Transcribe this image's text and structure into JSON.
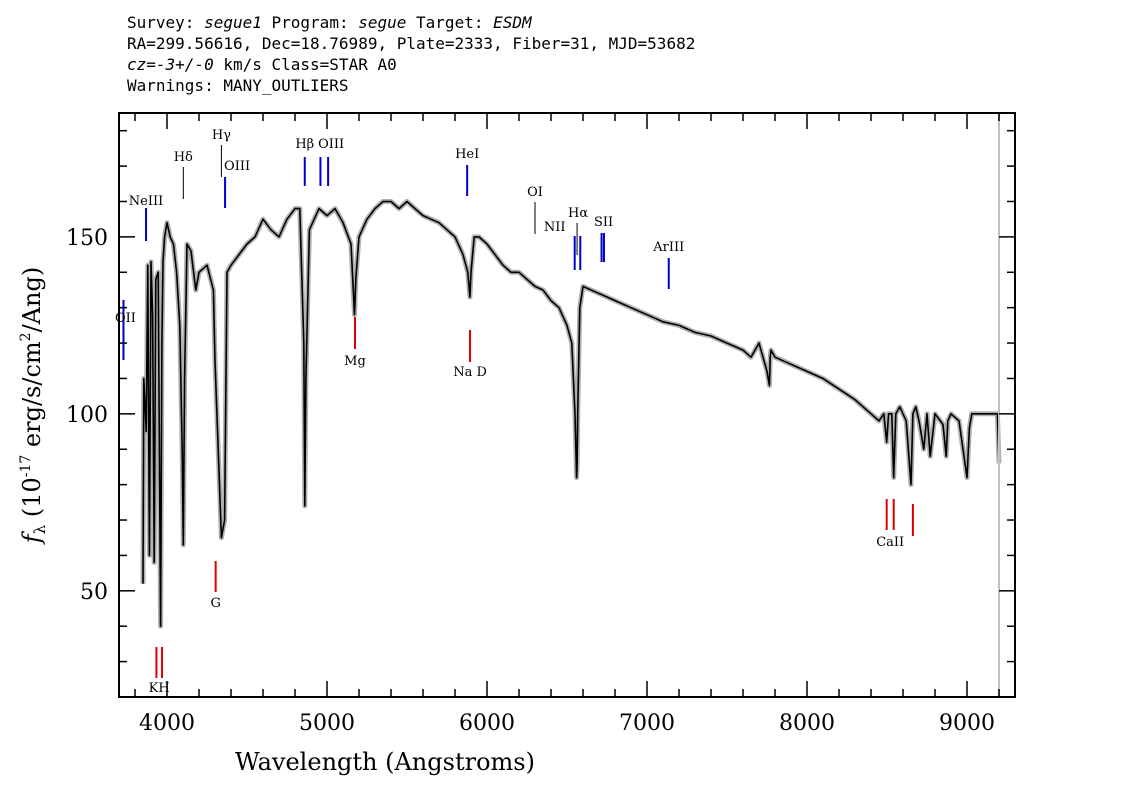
{
  "header": {
    "survey_label": "Survey:",
    "survey": "segue1",
    "program_label": "Program:",
    "program": "segue",
    "target_label": "Target:",
    "target": "ESDM",
    "line2": "RA=299.56616, Dec=18.76989, Plate=2333, Fiber=31, MJD=53682",
    "cz": "cz=-3+/-0",
    "cz_rest": " km/s Class=STAR A0",
    "warnings": "Warnings: MANY_OUTLIERS"
  },
  "colors": {
    "spectrum": "#000000",
    "error_band": "#b0b0b0",
    "emission_line": "#0000cc",
    "absorption_line": "#dd0000",
    "neutral_line": "#000000",
    "edge_marker": "#c0c0c0"
  },
  "chart_data": {
    "type": "line",
    "xlabel": "Wavelength (Angstroms)",
    "ylabel": "f_λ (10^-17 erg/s/cm^2/Ang)",
    "xlim": [
      3700,
      9300
    ],
    "ylim": [
      20,
      185
    ],
    "xticks": [
      4000,
      5000,
      6000,
      7000,
      8000,
      9000
    ],
    "yticks": [
      50,
      100,
      150
    ],
    "series": [
      {
        "x": [
          3850,
          3855,
          3870,
          3880,
          3890,
          3900,
          3910,
          3920,
          3930,
          3945,
          3960,
          3968,
          3975,
          3985,
          4000,
          4020,
          4040,
          4060,
          4080,
          4095,
          4102,
          4110,
          4125,
          4150,
          4180,
          4200,
          4250,
          4290,
          4300,
          4320,
          4340,
          4360,
          4375,
          4400,
          4450,
          4500,
          4550,
          4600,
          4650,
          4700,
          4750,
          4800,
          4830,
          4855,
          4861,
          4868,
          4890,
          4920,
          4950,
          5000,
          5050,
          5100,
          5150,
          5172,
          5180,
          5200,
          5250,
          5300,
          5350,
          5400,
          5450,
          5500,
          5550,
          5600,
          5650,
          5700,
          5750,
          5800,
          5850,
          5880,
          5893,
          5900,
          5920,
          5950,
          6000,
          6050,
          6100,
          6150,
          6200,
          6250,
          6300,
          6350,
          6400,
          6450,
          6500,
          6530,
          6550,
          6560,
          6563,
          6567,
          6580,
          6600,
          6650,
          6700,
          6750,
          6800,
          6900,
          7000,
          7100,
          7200,
          7300,
          7400,
          7500,
          7600,
          7650,
          7700,
          7750,
          7765,
          7770,
          7775,
          7800,
          7900,
          8000,
          8100,
          8200,
          8300,
          8400,
          8450,
          8480,
          8498,
          8510,
          8530,
          8542,
          8555,
          8580,
          8620,
          8650,
          8662,
          8680,
          8700,
          8730,
          8750,
          8770,
          8800,
          8850,
          8870,
          8880,
          8900,
          8950,
          9000,
          9015,
          9030,
          9050,
          9100,
          9150,
          9190,
          9200
        ],
        "values": [
          52,
          110,
          95,
          142,
          60,
          143,
          128,
          58,
          138,
          140,
          40,
          120,
          143,
          150,
          154,
          150,
          148,
          140,
          125,
          90,
          63,
          110,
          148,
          146,
          135,
          140,
          142,
          135,
          115,
          90,
          65,
          70,
          140,
          142,
          145,
          148,
          150,
          155,
          152,
          150,
          155,
          158,
          158,
          120,
          74,
          110,
          152,
          155,
          158,
          156,
          158,
          154,
          148,
          128,
          138,
          150,
          155,
          158,
          160,
          160,
          158,
          160,
          158,
          156,
          155,
          154,
          152,
          150,
          145,
          140,
          133,
          140,
          150,
          150,
          148,
          145,
          142,
          140,
          140,
          138,
          136,
          135,
          132,
          130,
          125,
          120,
          100,
          82,
          85,
          100,
          130,
          136,
          135,
          134,
          133,
          132,
          130,
          128,
          126,
          125,
          123,
          122,
          120,
          118,
          116,
          120,
          112,
          108,
          116,
          118,
          116,
          114,
          112,
          110,
          107,
          104,
          100,
          98,
          100,
          92,
          100,
          100,
          82,
          100,
          102,
          98,
          80,
          100,
          102,
          98,
          90,
          100,
          88,
          100,
          97,
          88,
          98,
          100,
          98,
          82,
          96,
          100,
          100,
          100,
          100,
          100,
          86
        ]
      }
    ],
    "lines_emission": [
      {
        "label": "OII",
        "x": 3728
      },
      {
        "label": "NeIII",
        "x": 3869
      },
      {
        "label": "OIII",
        "x": 4363
      },
      {
        "label": "Hβ",
        "x": 4861
      },
      {
        "label": "OIII",
        "x": 4959
      },
      {
        "label": "OIII",
        "x": 5007
      },
      {
        "label": "HeI",
        "x": 5876
      },
      {
        "label": "NII",
        "x": 6548
      },
      {
        "label": "NII",
        "x": 6583
      },
      {
        "label": "SII",
        "x": 6716
      },
      {
        "label": "SII",
        "x": 6731
      },
      {
        "label": "ArIII",
        "x": 7136
      }
    ],
    "lines_neutral": [
      {
        "label": "Hδ",
        "x": 4102
      },
      {
        "label": "Hγ",
        "x": 4340
      },
      {
        "label": "OI",
        "x": 6300
      },
      {
        "label": "Hα",
        "x": 6563
      }
    ],
    "lines_absorption": [
      {
        "label": "K",
        "x": 3934
      },
      {
        "label": "H",
        "x": 3969
      },
      {
        "label": "G",
        "x": 4304
      },
      {
        "label": "Mg",
        "x": 5175
      },
      {
        "label": "Na D",
        "x": 5894
      },
      {
        "label": "CaII",
        "x": 8498
      },
      {
        "label": "CaII",
        "x": 8542
      },
      {
        "label": "CaII",
        "x": 8662
      }
    ],
    "edge_marker_x": 9200
  }
}
